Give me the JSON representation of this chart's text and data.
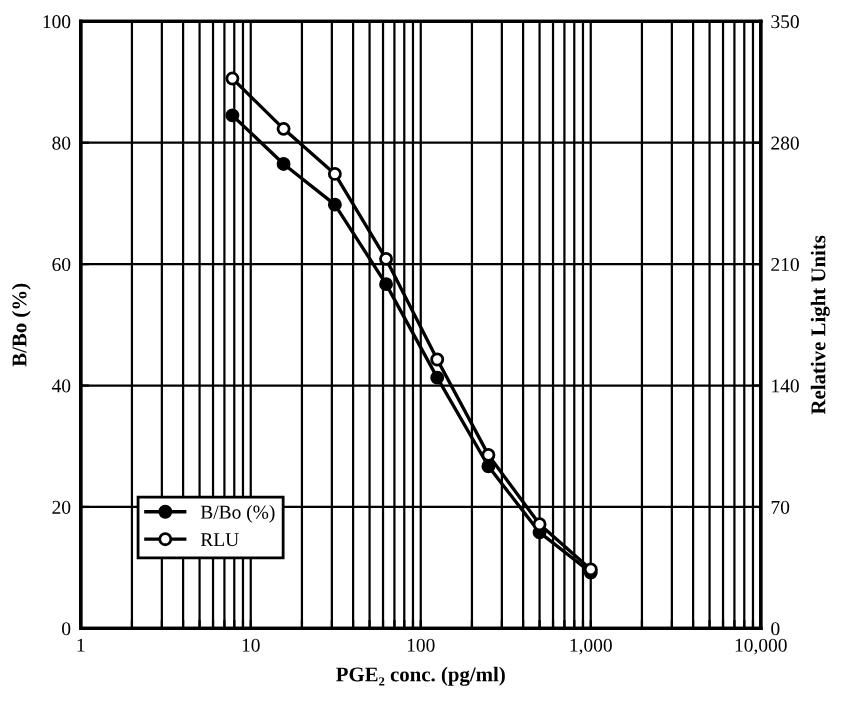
{
  "chart_data": {
    "type": "line",
    "xlabel": "PGE₂ conc. (pg/ml)",
    "ylabel": "B/Bo (%)",
    "y2label": "Relative Light Units",
    "log": "x",
    "grid": true,
    "legend": "bottom left",
    "marker": "circle",
    "line_style": "solid",
    "x": [
      7.8,
      15.6,
      31.25,
      62.5,
      125,
      250,
      500,
      1000
    ],
    "series": [
      {
        "name": "B/Bo (%)",
        "color": "#000000",
        "values": [
          84.5,
          76.5,
          69.8,
          56.7,
          41.3,
          26.7,
          15.8,
          9.2
        ]
      },
      {
        "name": "RLU",
        "color": "#000000",
        "axis": "y2",
        "values": [
          317,
          288,
          262,
          213,
          155,
          100,
          60,
          34
        ]
      }
    ],
    "xlim": [
      1,
      10000
    ],
    "xticks": [
      1,
      {
        "value": 2,
        "label": null
      },
      {
        "value": 3,
        "label": null
      },
      {
        "value": 4,
        "label": null
      },
      {
        "value": 5,
        "label": null
      },
      {
        "value": 6,
        "label": null
      },
      {
        "value": 7,
        "label": null
      },
      {
        "value": 8,
        "label": null
      },
      {
        "value": 9,
        "label": null
      },
      10,
      {
        "value": 20,
        "label": null
      },
      {
        "value": 30,
        "label": null
      },
      {
        "value": 40,
        "label": null
      },
      {
        "value": 50,
        "label": null
      },
      {
        "value": 60,
        "label": null
      },
      {
        "value": 70,
        "label": null
      },
      {
        "value": 80,
        "label": null
      },
      {
        "value": 90,
        "label": null
      },
      100,
      {
        "value": 200,
        "label": null
      },
      {
        "value": 300,
        "label": null
      },
      {
        "value": 400,
        "label": null
      },
      {
        "value": 500,
        "label": null
      },
      {
        "value": 600,
        "label": null
      },
      {
        "value": 700,
        "label": null
      },
      {
        "value": 800,
        "label": null
      },
      {
        "value": 900,
        "label": null
      },
      {
        "value": 1000,
        "label": "1,000"
      },
      {
        "value": 2000,
        "label": null
      },
      {
        "value": 3000,
        "label": null
      },
      {
        "value": 4000,
        "label": null
      },
      {
        "value": 5000,
        "label": null
      },
      {
        "value": 6000,
        "label": null
      },
      {
        "value": 7000,
        "label": null
      },
      {
        "value": 8000,
        "label": null
      },
      {
        "value": 9000,
        "label": null
      },
      {
        "value": 10000,
        "label": "10,000"
      }
    ],
    "ylim": [
      0,
      100
    ],
    "yticks": [
      0,
      20,
      40,
      60,
      80,
      100
    ],
    "y2lim": [
      0,
      350
    ],
    "y2ticks": [
      0,
      70,
      140,
      210,
      280,
      350
    ]
  }
}
